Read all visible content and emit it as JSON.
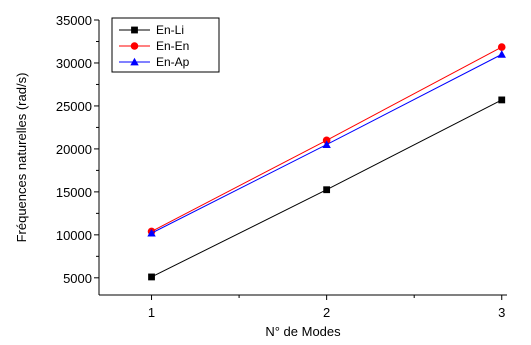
{
  "chart_data": {
    "type": "line",
    "title": "",
    "xlabel": "N° de Modes",
    "ylabel": "Fréquences naturelles (rad/s)",
    "x": [
      1,
      2,
      3
    ],
    "x_tick_labels": [
      "1",
      "2",
      "3"
    ],
    "xlim": [
      0.7,
      3.03
    ],
    "ylim": [
      3000,
      35000
    ],
    "y_ticks": [
      5000,
      10000,
      15000,
      20000,
      25000,
      30000,
      35000
    ],
    "y_tick_labels": [
      "5000",
      "10000",
      "15000",
      "20000",
      "25000",
      "30000",
      "35000"
    ],
    "grid": false,
    "legend_position": "top-left",
    "series": [
      {
        "name": "En-Li",
        "values": [
          5100,
          15250,
          25700
        ],
        "color": "#000000",
        "marker": "square"
      },
      {
        "name": "En-En",
        "values": [
          10400,
          21000,
          31850
        ],
        "color": "#ff0000",
        "marker": "circle"
      },
      {
        "name": "En-Ap",
        "values": [
          10200,
          20500,
          31000
        ],
        "color": "#0000ff",
        "marker": "triangle"
      }
    ]
  }
}
